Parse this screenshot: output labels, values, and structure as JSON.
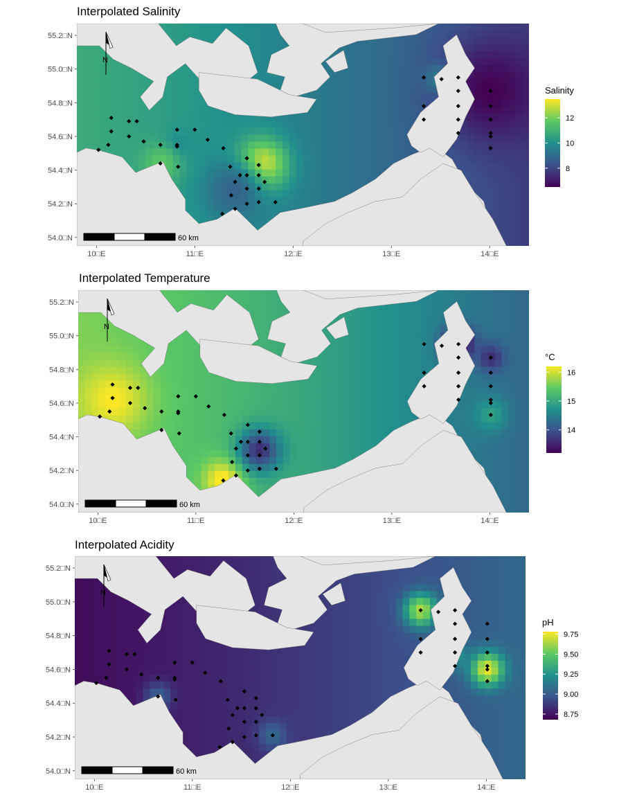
{
  "panels": [
    {
      "id": "salinity",
      "title": "Interpolated Salinity",
      "legend_title": "Salinity",
      "legend_ticks": [
        "12",
        "10",
        "8"
      ],
      "legend_tick_values": [
        12,
        10,
        8
      ],
      "legend_range": [
        6.5,
        13.5
      ],
      "colormap": "viridis",
      "scale_bar_label": "60 km",
      "north_label": "N"
    },
    {
      "id": "temperature",
      "title": "Interpolated Temperature",
      "legend_title": "°C",
      "legend_ticks": [
        "16",
        "15",
        "14"
      ],
      "legend_tick_values": [
        16,
        15,
        14
      ],
      "legend_range": [
        13.2,
        16.2
      ],
      "colormap": "viridis",
      "scale_bar_label": "60 km",
      "north_label": "N"
    },
    {
      "id": "acidity",
      "title": "Interpolated Acidity",
      "legend_title": "pH",
      "legend_ticks": [
        "9.75",
        "9.50",
        "9.25",
        "9.00",
        "8.75"
      ],
      "legend_tick_values": [
        9.75,
        9.5,
        9.25,
        9.0,
        8.75
      ],
      "legend_range": [
        8.68,
        9.78
      ],
      "colormap": "viridis",
      "scale_bar_label": "60 km",
      "north_label": "N"
    }
  ],
  "axes": {
    "x_ticks": [
      "10□E",
      "11□E",
      "12□E",
      "13□E",
      "14□E"
    ],
    "x_values": [
      10,
      11,
      12,
      13,
      14
    ],
    "y_ticks": [
      "55.2□N",
      "55.0□N",
      "54.8□N",
      "54.6□N",
      "54.4□N",
      "54.2□N",
      "54.0□N"
    ],
    "y_values": [
      55.2,
      55.0,
      54.8,
      54.6,
      54.4,
      54.2,
      54.0
    ],
    "x_range": [
      9.8,
      14.4
    ],
    "y_range": [
      53.95,
      55.27
    ]
  },
  "colors": {
    "land": "#e5e5e5",
    "station": "#000000",
    "viridis": [
      "#440154",
      "#3b528b",
      "#21908d",
      "#5dc963",
      "#fde725"
    ]
  },
  "stations": [
    [
      10.02,
      54.52
    ],
    [
      10.12,
      54.55
    ],
    [
      10.15,
      54.63
    ],
    [
      10.15,
      54.71
    ],
    [
      10.33,
      54.69
    ],
    [
      10.33,
      54.6
    ],
    [
      10.41,
      54.69
    ],
    [
      10.48,
      54.57
    ],
    [
      10.65,
      54.55
    ],
    [
      10.65,
      54.44
    ],
    [
      10.82,
      54.64
    ],
    [
      10.82,
      54.55
    ],
    [
      10.82,
      54.54
    ],
    [
      10.83,
      54.42
    ],
    [
      11.0,
      54.64
    ],
    [
      11.13,
      54.58
    ],
    [
      11.29,
      54.53
    ],
    [
      11.36,
      54.42
    ],
    [
      11.41,
      54.33
    ],
    [
      11.46,
      54.37
    ],
    [
      11.53,
      54.47
    ],
    [
      11.53,
      54.37
    ],
    [
      11.53,
      54.29
    ],
    [
      11.53,
      54.2
    ],
    [
      11.65,
      54.43
    ],
    [
      11.65,
      54.37
    ],
    [
      11.65,
      54.29
    ],
    [
      11.65,
      54.21
    ],
    [
      11.71,
      54.33
    ],
    [
      11.82,
      54.21
    ],
    [
      11.41,
      54.17
    ],
    [
      11.37,
      54.25
    ],
    [
      11.28,
      54.14
    ],
    [
      13.33,
      54.95
    ],
    [
      13.33,
      54.78
    ],
    [
      13.33,
      54.7
    ],
    [
      13.51,
      54.94
    ],
    [
      13.68,
      54.95
    ],
    [
      13.68,
      54.87
    ],
    [
      13.68,
      54.78
    ],
    [
      13.68,
      54.7
    ],
    [
      13.68,
      54.62
    ],
    [
      14.01,
      54.87
    ],
    [
      14.01,
      54.78
    ],
    [
      14.01,
      54.7
    ],
    [
      14.01,
      54.62
    ],
    [
      14.01,
      54.6
    ],
    [
      14.01,
      54.53
    ]
  ],
  "fields": {
    "salinity": {
      "base_west": 10.8,
      "base_east": 7.8,
      "hotspots": [
        {
          "lon": 11.68,
          "lat": 54.43,
          "value": 13.6,
          "radius": 0.18
        },
        {
          "lon": 11.4,
          "lat": 54.28,
          "value": 8.7,
          "radius": 0.22
        },
        {
          "lon": 10.82,
          "lat": 54.54,
          "value": 9.6,
          "radius": 0.1
        },
        {
          "lon": 10.66,
          "lat": 54.44,
          "value": 11.7,
          "radius": 0.14
        },
        {
          "lon": 13.51,
          "lat": 54.94,
          "value": 10.8,
          "radius": 0.1
        },
        {
          "lon": 14.01,
          "lat": 54.87,
          "value": 6.5,
          "radius": 0.35
        }
      ]
    },
    "temperature": {
      "base_west": 15.6,
      "base_east": 14.2,
      "hotspots": [
        {
          "lon": 10.15,
          "lat": 54.62,
          "value": 16.2,
          "radius": 0.25
        },
        {
          "lon": 11.28,
          "lat": 54.14,
          "value": 16.3,
          "radius": 0.15
        },
        {
          "lon": 11.65,
          "lat": 54.32,
          "value": 13.6,
          "radius": 0.15
        },
        {
          "lon": 13.68,
          "lat": 54.95,
          "value": 13.1,
          "radius": 0.12
        },
        {
          "lon": 14.01,
          "lat": 54.53,
          "value": 14.9,
          "radius": 0.12
        },
        {
          "lon": 14.01,
          "lat": 54.87,
          "value": 13.6,
          "radius": 0.1
        }
      ]
    },
    "acidity": {
      "base_west": 8.72,
      "base_east": 9.05,
      "hotspots": [
        {
          "lon": 13.33,
          "lat": 54.95,
          "value": 9.65,
          "radius": 0.12
        },
        {
          "lon": 14.01,
          "lat": 54.6,
          "value": 9.75,
          "radius": 0.12
        },
        {
          "lon": 13.68,
          "lat": 54.68,
          "value": 9.25,
          "radius": 0.1
        },
        {
          "lon": 11.82,
          "lat": 54.21,
          "value": 9.05,
          "radius": 0.1
        },
        {
          "lon": 10.65,
          "lat": 54.44,
          "value": 9.02,
          "radius": 0.1
        }
      ]
    }
  }
}
